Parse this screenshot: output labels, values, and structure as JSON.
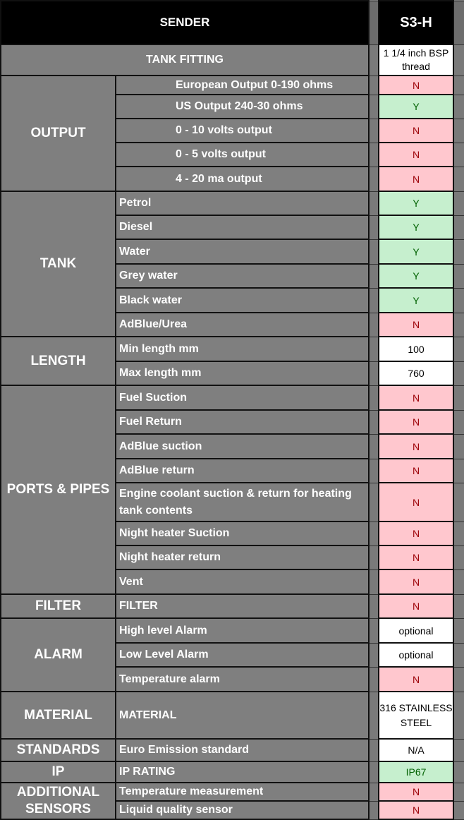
{
  "header": {
    "title": "SENDER",
    "model": "S3-H"
  },
  "tank_fitting": {
    "label": "TANK FITTING",
    "value": "1 1/4 inch BSP thread"
  },
  "groups": [
    {
      "label": "OUTPUT",
      "indent": true,
      "rows": [
        {
          "label": "European Output 0-190 ohms",
          "value": "N",
          "status": "N"
        },
        {
          "label": "US Output 240-30 ohms",
          "value": "Y",
          "status": "Y"
        },
        {
          "label": "0 - 10 volts output",
          "value": "N",
          "status": "N"
        },
        {
          "label": "0 - 5 volts output",
          "value": "N",
          "status": "N"
        },
        {
          "label": "4 - 20 ma output",
          "value": "N",
          "status": "N"
        }
      ]
    },
    {
      "label": "TANK",
      "rows": [
        {
          "label": "Petrol",
          "value": "Y",
          "status": "Y"
        },
        {
          "label": "Diesel",
          "value": "Y",
          "status": "Y"
        },
        {
          "label": "Water",
          "value": "Y",
          "status": "Y"
        },
        {
          "label": "Grey water",
          "value": "Y",
          "status": "Y"
        },
        {
          "label": "Black water",
          "value": "Y",
          "status": "Y"
        },
        {
          "label": "AdBlue/Urea",
          "value": "N",
          "status": "N"
        }
      ]
    },
    {
      "label": "LENGTH",
      "rows": [
        {
          "label": "Min length mm",
          "value": "100",
          "status": ""
        },
        {
          "label": "Max length mm",
          "value": "760",
          "status": ""
        }
      ]
    },
    {
      "label": "PORTS & PIPES",
      "rows": [
        {
          "label": "Fuel Suction",
          "value": "N",
          "status": "N"
        },
        {
          "label": "Fuel Return",
          "value": "N",
          "status": "N"
        },
        {
          "label": "AdBlue suction",
          "value": "N",
          "status": "N"
        },
        {
          "label": "AdBlue return",
          "value": "N",
          "status": "N"
        },
        {
          "label": "Engine coolant suction & return for heating tank contents",
          "value": "N",
          "status": "N"
        },
        {
          "label": "Night heater Suction",
          "value": "N",
          "status": "N"
        },
        {
          "label": "Night heater return",
          "value": "N",
          "status": "N"
        },
        {
          "label": "Vent",
          "value": "N",
          "status": "N"
        }
      ]
    },
    {
      "label": "FILTER",
      "rows": [
        {
          "label": "FILTER",
          "value": "N",
          "status": "N"
        }
      ]
    },
    {
      "label": "ALARM",
      "rows": [
        {
          "label": "High level Alarm",
          "value": "optional",
          "status": ""
        },
        {
          "label": "Low Level Alarm",
          "value": "optional",
          "status": ""
        },
        {
          "label": "Temperature alarm",
          "value": "N",
          "status": "N"
        }
      ]
    },
    {
      "label": "MATERIAL",
      "rows": [
        {
          "label": "MATERIAL",
          "value": "316 STAINLESS STEEL",
          "status": ""
        }
      ]
    },
    {
      "label": "STANDARDS",
      "rows": [
        {
          "label": "Euro Emission standard",
          "value": "N/A",
          "status": ""
        }
      ]
    },
    {
      "label": "IP",
      "rows": [
        {
          "label": "IP RATING",
          "value": "IP67",
          "status": "Y"
        }
      ]
    },
    {
      "label": "ADDITIONAL SENSORS",
      "rows": [
        {
          "label": "Temperature measurement",
          "value": "N",
          "status": "N"
        },
        {
          "label": "Liquid quality sensor",
          "value": "N",
          "status": "N"
        }
      ]
    }
  ],
  "colors": {
    "no_bg": "#ffc7ce",
    "no_text": "#9c0006",
    "yes_bg": "#c6efce",
    "yes_text": "#006100",
    "cell_gray": "#7f7f7f",
    "header_bg": "#000000"
  }
}
